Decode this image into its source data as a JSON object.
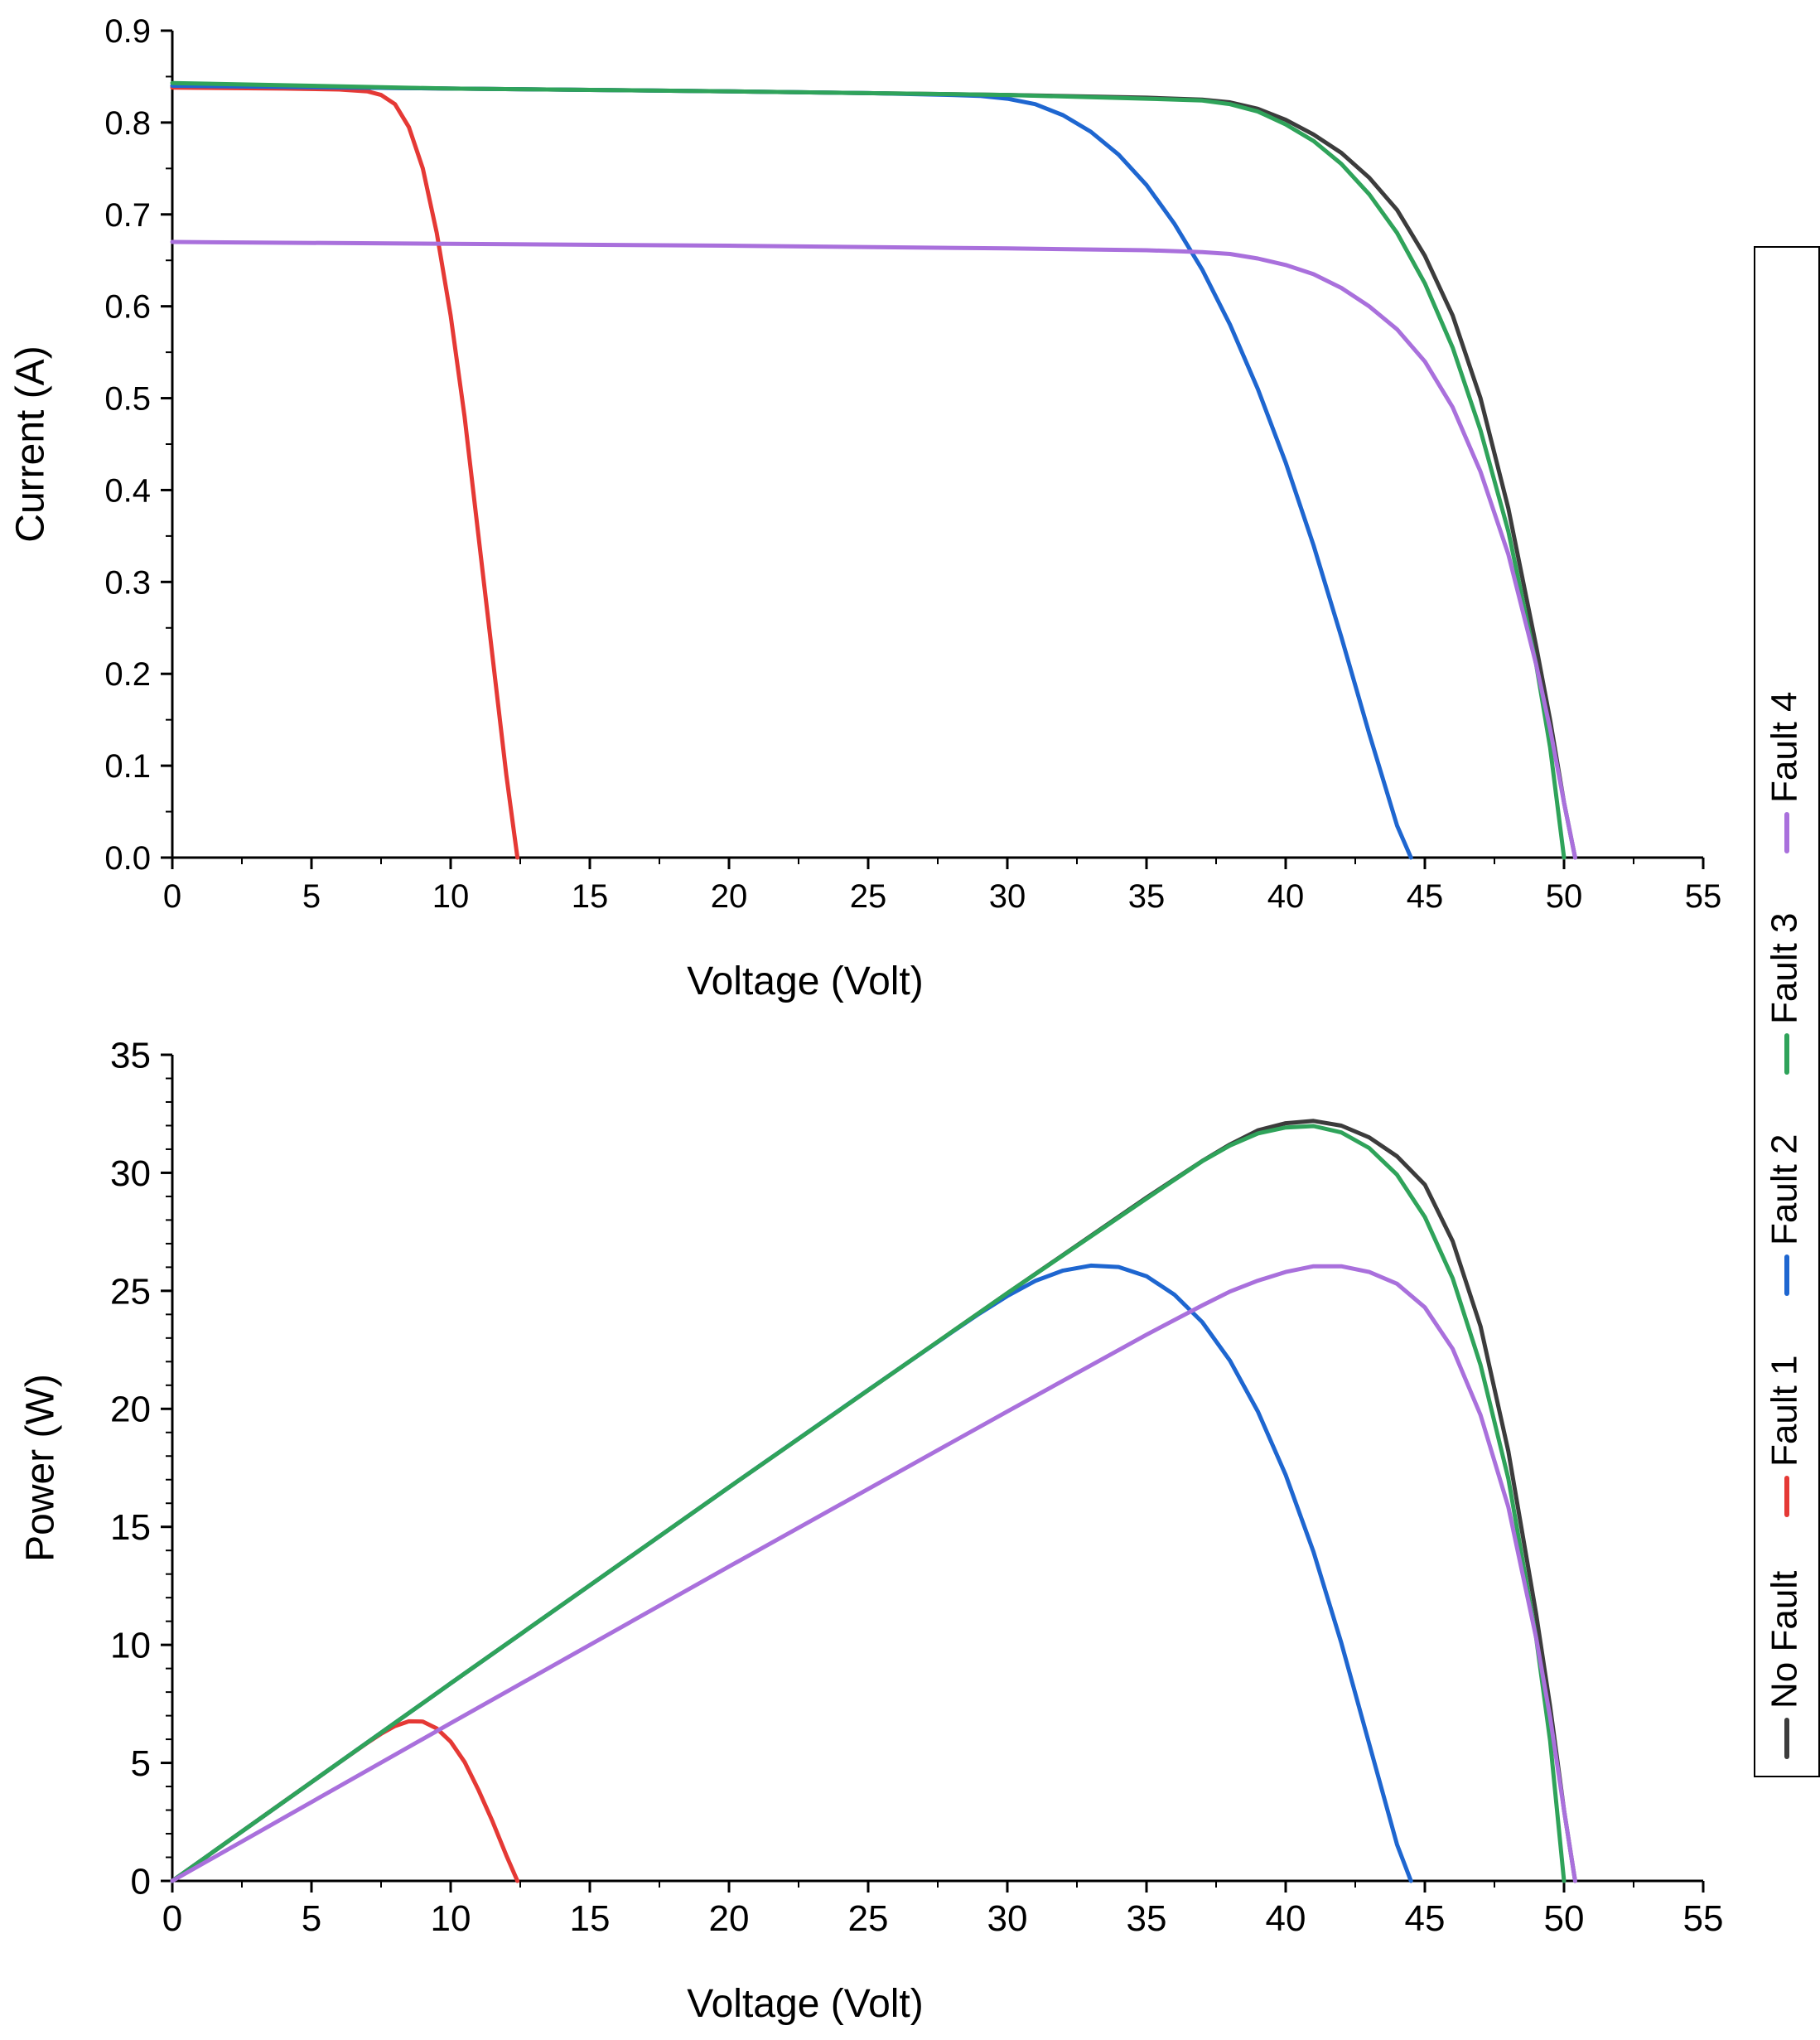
{
  "chart_data": [
    {
      "type": "line",
      "title": "",
      "xlabel": "Voltage (Volt)",
      "ylabel": "Current (A)",
      "xlim": [
        0,
        55
      ],
      "ylim": [
        0,
        0.9
      ],
      "xticks": [
        "0",
        "5",
        "10",
        "15",
        "20",
        "25",
        "30",
        "35",
        "40",
        "45",
        "50",
        "55"
      ],
      "yticks": [
        "0.0",
        "0.1",
        "0.2",
        "0.3",
        "0.4",
        "0.5",
        "0.6",
        "0.7",
        "0.8",
        "0.9"
      ],
      "series": [
        {
          "name": "No Fault",
          "color": "#3c3c3c",
          "x": [
            0,
            10,
            20,
            30,
            35,
            37,
            38,
            39,
            40,
            41,
            42,
            43,
            44,
            45,
            46,
            47,
            48,
            49,
            49.5,
            50,
            50.4
          ],
          "y": [
            0.84,
            0.837,
            0.834,
            0.83,
            0.827,
            0.825,
            0.822,
            0.815,
            0.803,
            0.787,
            0.767,
            0.74,
            0.705,
            0.655,
            0.59,
            0.5,
            0.38,
            0.23,
            0.15,
            0.06,
            0.0
          ]
        },
        {
          "name": "Fault 1",
          "color": "#e53935",
          "x": [
            0,
            4,
            6,
            7,
            7.5,
            8,
            8.5,
            9,
            9.5,
            10,
            10.5,
            11,
            11.5,
            12,
            12.4
          ],
          "y": [
            0.838,
            0.837,
            0.836,
            0.834,
            0.83,
            0.82,
            0.795,
            0.75,
            0.68,
            0.59,
            0.48,
            0.35,
            0.22,
            0.09,
            0.0
          ]
        },
        {
          "name": "Fault 2",
          "color": "#1e66d0",
          "x": [
            0,
            10,
            20,
            25,
            28,
            29,
            30,
            31,
            32,
            33,
            34,
            35,
            36,
            37,
            38,
            39,
            40,
            41,
            42,
            43,
            44,
            44.5
          ],
          "y": [
            0.84,
            0.837,
            0.834,
            0.832,
            0.83,
            0.829,
            0.826,
            0.82,
            0.808,
            0.79,
            0.765,
            0.732,
            0.69,
            0.64,
            0.58,
            0.51,
            0.43,
            0.34,
            0.24,
            0.135,
            0.035,
            0.0
          ]
        },
        {
          "name": "Fault 3",
          "color": "#2fa35a",
          "x": [
            0,
            10,
            20,
            30,
            35,
            37,
            38,
            39,
            40,
            41,
            42,
            43,
            44,
            45,
            46,
            47,
            48,
            49,
            49.5,
            50
          ],
          "y": [
            0.843,
            0.837,
            0.834,
            0.83,
            0.826,
            0.824,
            0.82,
            0.812,
            0.798,
            0.78,
            0.755,
            0.722,
            0.68,
            0.625,
            0.555,
            0.465,
            0.355,
            0.21,
            0.12,
            0.0
          ]
        },
        {
          "name": "Fault 4",
          "color": "#a970dc",
          "x": [
            0,
            10,
            20,
            30,
            35,
            37,
            38,
            39,
            40,
            41,
            42,
            43,
            44,
            45,
            46,
            47,
            48,
            49,
            49.5,
            50,
            50.4
          ],
          "y": [
            0.67,
            0.668,
            0.666,
            0.663,
            0.661,
            0.659,
            0.657,
            0.652,
            0.645,
            0.635,
            0.62,
            0.6,
            0.575,
            0.54,
            0.49,
            0.42,
            0.33,
            0.21,
            0.14,
            0.06,
            0.0
          ]
        }
      ]
    },
    {
      "type": "line",
      "title": "",
      "xlabel": "Voltage (Volt)",
      "ylabel": "Power (W)",
      "xlim": [
        0,
        55
      ],
      "ylim": [
        0,
        35
      ],
      "xticks": [
        "0",
        "5",
        "10",
        "15",
        "20",
        "25",
        "30",
        "35",
        "40",
        "45",
        "50",
        "55"
      ],
      "yticks": [
        "0",
        "5",
        "10",
        "15",
        "20",
        "25",
        "30",
        "35"
      ],
      "series": [
        {
          "name": "No Fault",
          "color": "#3c3c3c",
          "x": [
            0,
            10,
            20,
            30,
            35,
            37,
            38,
            39,
            40,
            41,
            42,
            43,
            44,
            45,
            46,
            47,
            48,
            49,
            49.5,
            50,
            50.4
          ],
          "y": [
            0,
            8.37,
            16.68,
            24.9,
            28.95,
            30.5,
            31.2,
            31.8,
            32.1,
            32.2,
            32.0,
            31.5,
            30.7,
            29.5,
            27.1,
            23.5,
            18.2,
            11.3,
            7.4,
            3.0,
            0
          ]
        },
        {
          "name": "Fault 1",
          "color": "#e53935",
          "x": [
            0,
            4,
            6,
            7,
            7.5,
            8,
            8.5,
            9,
            9.5,
            10,
            10.5,
            11,
            11.5,
            12,
            12.4
          ],
          "y": [
            0,
            3.35,
            5.02,
            5.84,
            6.23,
            6.56,
            6.76,
            6.75,
            6.46,
            5.9,
            5.04,
            3.85,
            2.53,
            1.08,
            0
          ]
        },
        {
          "name": "Fault 2",
          "color": "#1e66d0",
          "x": [
            0,
            10,
            20,
            25,
            28,
            29,
            30,
            31,
            32,
            33,
            34,
            35,
            36,
            37,
            38,
            39,
            40,
            41,
            42,
            43,
            44,
            44.5
          ],
          "y": [
            0,
            8.37,
            16.68,
            20.8,
            23.24,
            24.04,
            24.78,
            25.42,
            25.86,
            26.07,
            26.01,
            25.62,
            24.84,
            23.68,
            22.04,
            19.89,
            17.2,
            13.94,
            10.08,
            5.81,
            1.54,
            0
          ]
        },
        {
          "name": "Fault 3",
          "color": "#2fa35a",
          "x": [
            0,
            10,
            20,
            30,
            35,
            37,
            38,
            39,
            40,
            41,
            42,
            43,
            44,
            45,
            46,
            47,
            48,
            49,
            49.5,
            50
          ],
          "y": [
            0,
            8.37,
            16.68,
            24.9,
            28.91,
            30.49,
            31.16,
            31.67,
            31.92,
            31.98,
            31.71,
            31.05,
            29.92,
            28.13,
            25.53,
            21.86,
            17.04,
            10.29,
            5.94,
            0
          ]
        },
        {
          "name": "Fault 4",
          "color": "#a970dc",
          "x": [
            0,
            10,
            20,
            30,
            35,
            37,
            38,
            39,
            40,
            41,
            42,
            43,
            44,
            45,
            46,
            47,
            48,
            49,
            49.5,
            50,
            50.4
          ],
          "y": [
            0,
            6.68,
            13.32,
            19.89,
            23.14,
            24.38,
            24.97,
            25.43,
            25.8,
            26.04,
            26.04,
            25.8,
            25.3,
            24.3,
            22.54,
            19.74,
            15.84,
            10.29,
            6.93,
            3.0,
            0
          ]
        }
      ]
    }
  ],
  "legend": {
    "items": [
      "No Fault",
      "Fault 1",
      "Fault 2",
      "Fault 3",
      "Fault 4"
    ],
    "colors": [
      "#3c3c3c",
      "#e53935",
      "#1e66d0",
      "#2fa35a",
      "#a970dc"
    ],
    "placement": "right, vertical text"
  }
}
